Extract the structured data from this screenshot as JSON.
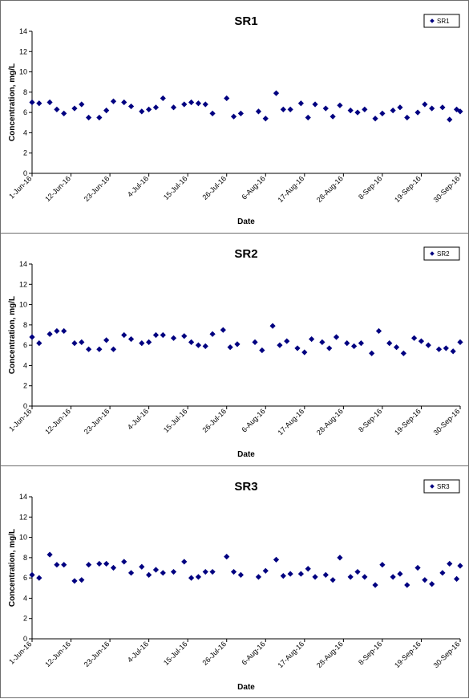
{
  "chart_data": [
    {
      "type": "scatter",
      "title": "SR1",
      "xlabel": "Date",
      "ylabel": "Concentration, mg/L",
      "ylim": [
        0,
        14
      ],
      "yticks": [
        0,
        2,
        4,
        6,
        8,
        10,
        12,
        14
      ],
      "xlim": [
        "2016-06-01",
        "2016-09-30"
      ],
      "xtick_labels": [
        "1-Jun-16",
        "12-Jun-16",
        "23-Jun-16",
        "4-Jul-16",
        "15-Jul-16",
        "26-Jul-16",
        "6-Aug-16",
        "17-Aug-16",
        "28-Aug-16",
        "8-Sep-16",
        "19-Sep-16",
        "30-Sep-16"
      ],
      "grid": false,
      "legend": "top-right",
      "marker_color": "#000080",
      "series": [
        {
          "name": "SR1",
          "points": [
            {
              "x": "2016-06-01",
              "y": 7.0
            },
            {
              "x": "2016-06-03",
              "y": 6.9
            },
            {
              "x": "2016-06-06",
              "y": 7.0
            },
            {
              "x": "2016-06-08",
              "y": 6.3
            },
            {
              "x": "2016-06-10",
              "y": 5.9
            },
            {
              "x": "2016-06-13",
              "y": 6.4
            },
            {
              "x": "2016-06-15",
              "y": 6.8
            },
            {
              "x": "2016-06-17",
              "y": 5.5
            },
            {
              "x": "2016-06-20",
              "y": 5.5
            },
            {
              "x": "2016-06-22",
              "y": 6.2
            },
            {
              "x": "2016-06-24",
              "y": 7.1
            },
            {
              "x": "2016-06-27",
              "y": 7.0
            },
            {
              "x": "2016-06-29",
              "y": 6.6
            },
            {
              "x": "2016-07-02",
              "y": 6.1
            },
            {
              "x": "2016-07-04",
              "y": 6.3
            },
            {
              "x": "2016-07-06",
              "y": 6.5
            },
            {
              "x": "2016-07-08",
              "y": 7.4
            },
            {
              "x": "2016-07-11",
              "y": 6.5
            },
            {
              "x": "2016-07-14",
              "y": 6.8
            },
            {
              "x": "2016-07-16",
              "y": 7.0
            },
            {
              "x": "2016-07-18",
              "y": 6.9
            },
            {
              "x": "2016-07-20",
              "y": 6.8
            },
            {
              "x": "2016-07-22",
              "y": 5.9
            },
            {
              "x": "2016-07-26",
              "y": 7.4
            },
            {
              "x": "2016-07-28",
              "y": 5.6
            },
            {
              "x": "2016-07-30",
              "y": 5.9
            },
            {
              "x": "2016-08-04",
              "y": 6.1
            },
            {
              "x": "2016-08-06",
              "y": 5.4
            },
            {
              "x": "2016-08-09",
              "y": 7.9
            },
            {
              "x": "2016-08-11",
              "y": 6.3
            },
            {
              "x": "2016-08-13",
              "y": 6.3
            },
            {
              "x": "2016-08-16",
              "y": 6.9
            },
            {
              "x": "2016-08-18",
              "y": 5.5
            },
            {
              "x": "2016-08-20",
              "y": 6.8
            },
            {
              "x": "2016-08-23",
              "y": 6.4
            },
            {
              "x": "2016-08-25",
              "y": 5.6
            },
            {
              "x": "2016-08-27",
              "y": 6.7
            },
            {
              "x": "2016-08-30",
              "y": 6.2
            },
            {
              "x": "2016-09-01",
              "y": 6.0
            },
            {
              "x": "2016-09-03",
              "y": 6.3
            },
            {
              "x": "2016-09-06",
              "y": 5.4
            },
            {
              "x": "2016-09-08",
              "y": 5.9
            },
            {
              "x": "2016-09-11",
              "y": 6.2
            },
            {
              "x": "2016-09-13",
              "y": 6.5
            },
            {
              "x": "2016-09-15",
              "y": 5.5
            },
            {
              "x": "2016-09-18",
              "y": 6.0
            },
            {
              "x": "2016-09-20",
              "y": 6.8
            },
            {
              "x": "2016-09-22",
              "y": 6.4
            },
            {
              "x": "2016-09-25",
              "y": 6.5
            },
            {
              "x": "2016-09-27",
              "y": 5.3
            },
            {
              "x": "2016-09-29",
              "y": 6.3
            },
            {
              "x": "2016-09-30",
              "y": 6.1
            }
          ]
        }
      ]
    },
    {
      "type": "scatter",
      "title": "SR2",
      "xlabel": "Date",
      "ylabel": "Concentration, mg/L",
      "ylim": [
        0,
        14
      ],
      "yticks": [
        0,
        2,
        4,
        6,
        8,
        10,
        12,
        14
      ],
      "xlim": [
        "2016-06-01",
        "2016-09-30"
      ],
      "xtick_labels": [
        "1-Jun-16",
        "12-Jun-16",
        "23-Jun-16",
        "4-Jul-16",
        "15-Jul-16",
        "26-Jul-16",
        "6-Aug-16",
        "17-Aug-16",
        "28-Aug-16",
        "8-Sep-16",
        "19-Sep-16",
        "30-Sep-16"
      ],
      "grid": false,
      "legend": "top-right",
      "marker_color": "#000080",
      "series": [
        {
          "name": "SR2",
          "points": [
            {
              "x": "2016-06-01",
              "y": 6.8
            },
            {
              "x": "2016-06-03",
              "y": 6.2
            },
            {
              "x": "2016-06-06",
              "y": 7.1
            },
            {
              "x": "2016-06-08",
              "y": 7.4
            },
            {
              "x": "2016-06-10",
              "y": 7.4
            },
            {
              "x": "2016-06-13",
              "y": 6.2
            },
            {
              "x": "2016-06-15",
              "y": 6.3
            },
            {
              "x": "2016-06-17",
              "y": 5.6
            },
            {
              "x": "2016-06-20",
              "y": 5.6
            },
            {
              "x": "2016-06-22",
              "y": 6.5
            },
            {
              "x": "2016-06-24",
              "y": 5.6
            },
            {
              "x": "2016-06-27",
              "y": 7.0
            },
            {
              "x": "2016-06-29",
              "y": 6.6
            },
            {
              "x": "2016-07-02",
              "y": 6.2
            },
            {
              "x": "2016-07-04",
              "y": 6.3
            },
            {
              "x": "2016-07-06",
              "y": 7.0
            },
            {
              "x": "2016-07-08",
              "y": 7.0
            },
            {
              "x": "2016-07-11",
              "y": 6.7
            },
            {
              "x": "2016-07-14",
              "y": 6.9
            },
            {
              "x": "2016-07-16",
              "y": 6.3
            },
            {
              "x": "2016-07-18",
              "y": 6.0
            },
            {
              "x": "2016-07-20",
              "y": 5.9
            },
            {
              "x": "2016-07-22",
              "y": 7.1
            },
            {
              "x": "2016-07-25",
              "y": 7.5
            },
            {
              "x": "2016-07-27",
              "y": 5.8
            },
            {
              "x": "2016-07-29",
              "y": 6.1
            },
            {
              "x": "2016-08-03",
              "y": 6.3
            },
            {
              "x": "2016-08-05",
              "y": 5.5
            },
            {
              "x": "2016-08-08",
              "y": 7.9
            },
            {
              "x": "2016-08-10",
              "y": 6.0
            },
            {
              "x": "2016-08-12",
              "y": 6.4
            },
            {
              "x": "2016-08-15",
              "y": 5.7
            },
            {
              "x": "2016-08-17",
              "y": 5.3
            },
            {
              "x": "2016-08-19",
              "y": 6.6
            },
            {
              "x": "2016-08-22",
              "y": 6.3
            },
            {
              "x": "2016-08-24",
              "y": 5.7
            },
            {
              "x": "2016-08-26",
              "y": 6.8
            },
            {
              "x": "2016-08-29",
              "y": 6.2
            },
            {
              "x": "2016-08-31",
              "y": 5.9
            },
            {
              "x": "2016-09-02",
              "y": 6.2
            },
            {
              "x": "2016-09-05",
              "y": 5.2
            },
            {
              "x": "2016-09-07",
              "y": 7.4
            },
            {
              "x": "2016-09-10",
              "y": 6.2
            },
            {
              "x": "2016-09-12",
              "y": 5.8
            },
            {
              "x": "2016-09-14",
              "y": 5.2
            },
            {
              "x": "2016-09-17",
              "y": 6.7
            },
            {
              "x": "2016-09-19",
              "y": 6.4
            },
            {
              "x": "2016-09-21",
              "y": 6.0
            },
            {
              "x": "2016-09-24",
              "y": 5.6
            },
            {
              "x": "2016-09-26",
              "y": 5.7
            },
            {
              "x": "2016-09-28",
              "y": 5.4
            },
            {
              "x": "2016-09-30",
              "y": 6.3
            }
          ]
        }
      ]
    },
    {
      "type": "scatter",
      "title": "SR3",
      "xlabel": "Date",
      "ylabel": "Concentration, mg/L",
      "ylim": [
        0,
        14
      ],
      "yticks": [
        0,
        2,
        4,
        6,
        8,
        10,
        12,
        14
      ],
      "xlim": [
        "2016-06-01",
        "2016-09-30"
      ],
      "xtick_labels": [
        "1-Jun-16",
        "12-Jun-16",
        "23-Jun-16",
        "4-Jul-16",
        "15-Jul-16",
        "26-Jul-16",
        "6-Aug-16",
        "17-Aug-16",
        "28-Aug-16",
        "8-Sep-16",
        "19-Sep-16",
        "30-Sep-16"
      ],
      "grid": false,
      "legend": "top-right",
      "marker_color": "#000080",
      "series": [
        {
          "name": "SR3",
          "points": [
            {
              "x": "2016-06-01",
              "y": 6.3
            },
            {
              "x": "2016-06-03",
              "y": 6.0
            },
            {
              "x": "2016-06-06",
              "y": 8.3
            },
            {
              "x": "2016-06-08",
              "y": 7.3
            },
            {
              "x": "2016-06-10",
              "y": 7.3
            },
            {
              "x": "2016-06-13",
              "y": 5.7
            },
            {
              "x": "2016-06-15",
              "y": 5.8
            },
            {
              "x": "2016-06-17",
              "y": 7.3
            },
            {
              "x": "2016-06-20",
              "y": 7.4
            },
            {
              "x": "2016-06-22",
              "y": 7.4
            },
            {
              "x": "2016-06-24",
              "y": 7.0
            },
            {
              "x": "2016-06-27",
              "y": 7.6
            },
            {
              "x": "2016-06-29",
              "y": 6.5
            },
            {
              "x": "2016-07-02",
              "y": 7.1
            },
            {
              "x": "2016-07-04",
              "y": 6.3
            },
            {
              "x": "2016-07-06",
              "y": 6.8
            },
            {
              "x": "2016-07-08",
              "y": 6.5
            },
            {
              "x": "2016-07-11",
              "y": 6.6
            },
            {
              "x": "2016-07-14",
              "y": 7.6
            },
            {
              "x": "2016-07-16",
              "y": 6.0
            },
            {
              "x": "2016-07-18",
              "y": 6.1
            },
            {
              "x": "2016-07-20",
              "y": 6.6
            },
            {
              "x": "2016-07-22",
              "y": 6.6
            },
            {
              "x": "2016-07-26",
              "y": 8.1
            },
            {
              "x": "2016-07-28",
              "y": 6.6
            },
            {
              "x": "2016-07-30",
              "y": 6.3
            },
            {
              "x": "2016-08-04",
              "y": 6.1
            },
            {
              "x": "2016-08-06",
              "y": 6.7
            },
            {
              "x": "2016-08-09",
              "y": 7.8
            },
            {
              "x": "2016-08-11",
              "y": 6.2
            },
            {
              "x": "2016-08-13",
              "y": 6.4
            },
            {
              "x": "2016-08-16",
              "y": 6.4
            },
            {
              "x": "2016-08-18",
              "y": 6.9
            },
            {
              "x": "2016-08-20",
              "y": 6.1
            },
            {
              "x": "2016-08-23",
              "y": 6.3
            },
            {
              "x": "2016-08-25",
              "y": 5.8
            },
            {
              "x": "2016-08-27",
              "y": 8.0
            },
            {
              "x": "2016-08-30",
              "y": 6.1
            },
            {
              "x": "2016-09-01",
              "y": 6.6
            },
            {
              "x": "2016-09-03",
              "y": 6.1
            },
            {
              "x": "2016-09-06",
              "y": 5.3
            },
            {
              "x": "2016-09-08",
              "y": 7.3
            },
            {
              "x": "2016-09-11",
              "y": 6.1
            },
            {
              "x": "2016-09-13",
              "y": 6.4
            },
            {
              "x": "2016-09-15",
              "y": 5.3
            },
            {
              "x": "2016-09-18",
              "y": 7.0
            },
            {
              "x": "2016-09-20",
              "y": 5.8
            },
            {
              "x": "2016-09-22",
              "y": 5.4
            },
            {
              "x": "2016-09-25",
              "y": 6.5
            },
            {
              "x": "2016-09-27",
              "y": 7.4
            },
            {
              "x": "2016-09-29",
              "y": 5.9
            },
            {
              "x": "2016-09-30",
              "y": 7.2
            }
          ]
        }
      ]
    }
  ]
}
